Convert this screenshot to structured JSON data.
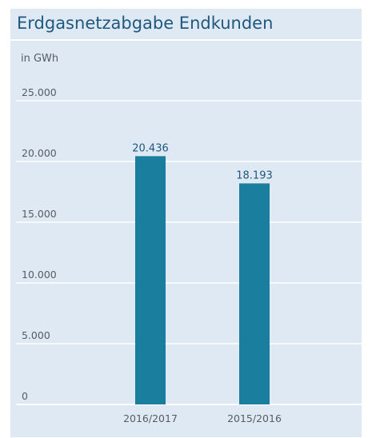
{
  "chart_data": {
    "type": "bar",
    "title": "Erdgasnetzabgabe Endkunden",
    "unit_label": "in GWh",
    "categories": [
      "2016/2017",
      "2015/2016"
    ],
    "values": [
      20436,
      18193
    ],
    "value_labels": [
      "20.436",
      "18.193"
    ],
    "ylim": [
      0,
      25000
    ],
    "yticks": [
      0,
      5000,
      10000,
      15000,
      20000,
      25000
    ],
    "ytick_labels": [
      "0",
      "5.000",
      "10.000",
      "15.000",
      "20.000",
      "25.000"
    ],
    "grid": true,
    "colors": {
      "bar": "#1a7f9f",
      "title": "#1e5880",
      "panel": "#dfe9f3",
      "grid": "#ffffff",
      "text": "#555c63"
    }
  }
}
